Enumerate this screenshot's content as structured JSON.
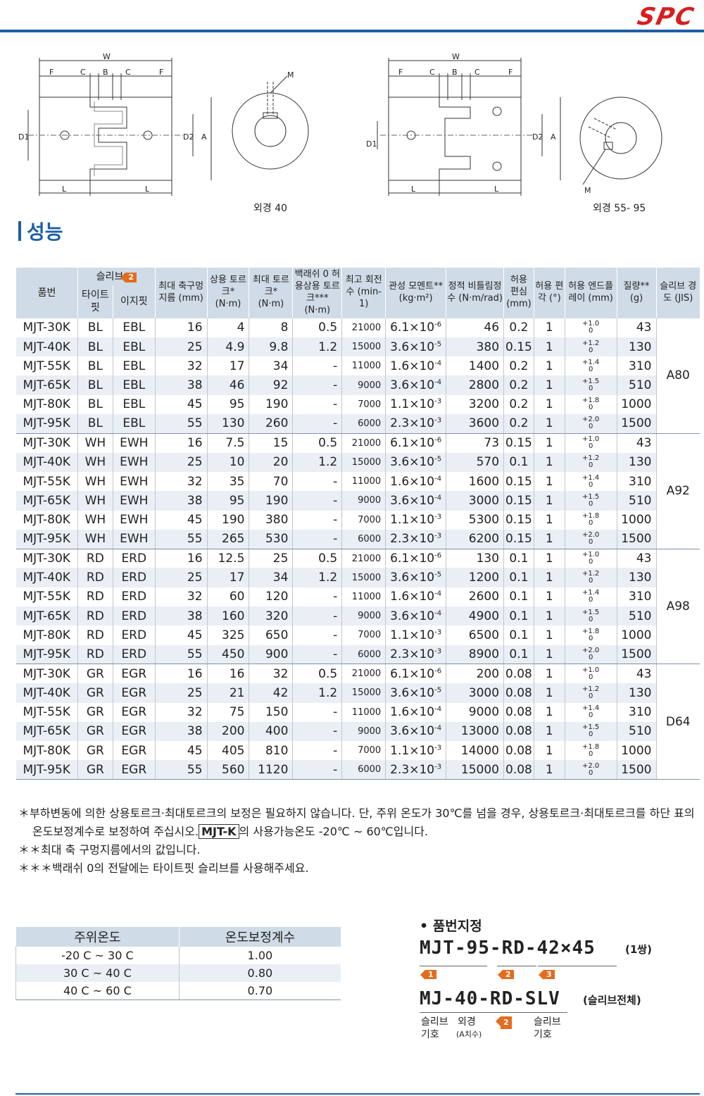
{
  "brand": "SPC",
  "drawings": {
    "left_caption": "외경 40",
    "right_caption": "외경 55- 95",
    "dims": {
      "w": "W",
      "f": "F",
      "c": "C",
      "b": "B",
      "l": "L",
      "d1": "D1",
      "d2": "D2",
      "a": "A",
      "m": "M"
    }
  },
  "section_title": "성능",
  "table": {
    "headers": {
      "part": "품번",
      "sleeve": "슬리브",
      "sleeve_badge": "2",
      "tight": "타이트핏",
      "easy": "이지핏",
      "bore": "최대 축구멍지름 (mm)",
      "rated": "상용 토르크* (N·m)",
      "max": "최대 토르크* (N·m)",
      "zero": "백래쉬 0 허용상용 토르크*** (N·m)",
      "speed": "최고 회전수 (min-1)",
      "inertia": "관성 모멘트** (kg·m²)",
      "stiff": "정적 비틀림정수 (N·m/rad)",
      "ecc": "허용 편심 (mm)",
      "ang": "허용 편각 (°)",
      "end": "허용 엔드플레이 (mm)",
      "mass": "질량** (g)",
      "hard": "슬리브 경도 (JIS)"
    },
    "groups": [
      {
        "hardness": "A80",
        "rows": [
          [
            "MJT-30K",
            "BL",
            "EBL",
            "16",
            "4",
            "8",
            "0.5",
            "21000",
            "6.1×10-6",
            "46",
            "0.2",
            "1",
            "+1.0/0",
            "43"
          ],
          [
            "MJT-40K",
            "BL",
            "EBL",
            "25",
            "4.9",
            "9.8",
            "1.2",
            "15000",
            "3.6×10-5",
            "380",
            "0.15",
            "1",
            "+1.2/0",
            "130"
          ],
          [
            "MJT-55K",
            "BL",
            "EBL",
            "32",
            "17",
            "34",
            "-",
            "11000",
            "1.6×10-4",
            "1400",
            "0.2",
            "1",
            "+1.4/0",
            "310"
          ],
          [
            "MJT-65K",
            "BL",
            "EBL",
            "38",
            "46",
            "92",
            "-",
            "9000",
            "3.6×10-4",
            "2800",
            "0.2",
            "1",
            "+1.5/0",
            "510"
          ],
          [
            "MJT-80K",
            "BL",
            "EBL",
            "45",
            "95",
            "190",
            "-",
            "7000",
            "1.1×10-3",
            "3200",
            "0.2",
            "1",
            "+1.8/0",
            "1000"
          ],
          [
            "MJT-95K",
            "BL",
            "EBL",
            "55",
            "130",
            "260",
            "-",
            "6000",
            "2.3×10-3",
            "3600",
            "0.2",
            "1",
            "+2.0/0",
            "1500"
          ]
        ]
      },
      {
        "hardness": "A92",
        "rows": [
          [
            "MJT-30K",
            "WH",
            "EWH",
            "16",
            "7.5",
            "15",
            "0.5",
            "21000",
            "6.1×10-6",
            "73",
            "0.15",
            "1",
            "+1.0/0",
            "43"
          ],
          [
            "MJT-40K",
            "WH",
            "EWH",
            "25",
            "10",
            "20",
            "1.2",
            "15000",
            "3.6×10-5",
            "570",
            "0.1",
            "1",
            "+1.2/0",
            "130"
          ],
          [
            "MJT-55K",
            "WH",
            "EWH",
            "32",
            "35",
            "70",
            "-",
            "11000",
            "1.6×10-4",
            "1600",
            "0.15",
            "1",
            "+1.4/0",
            "310"
          ],
          [
            "MJT-65K",
            "WH",
            "EWH",
            "38",
            "95",
            "190",
            "-",
            "9000",
            "3.6×10-4",
            "3000",
            "0.15",
            "1",
            "+1.5/0",
            "510"
          ],
          [
            "MJT-80K",
            "WH",
            "EWH",
            "45",
            "190",
            "380",
            "-",
            "7000",
            "1.1×10-3",
            "5300",
            "0.15",
            "1",
            "+1.8/0",
            "1000"
          ],
          [
            "MJT-95K",
            "WH",
            "EWH",
            "55",
            "265",
            "530",
            "-",
            "6000",
            "2.3×10-3",
            "6200",
            "0.15",
            "1",
            "+2.0/0",
            "1500"
          ]
        ]
      },
      {
        "hardness": "A98",
        "rows": [
          [
            "MJT-30K",
            "RD",
            "ERD",
            "16",
            "12.5",
            "25",
            "0.5",
            "21000",
            "6.1×10-6",
            "130",
            "0.1",
            "1",
            "+1.0/0",
            "43"
          ],
          [
            "MJT-40K",
            "RD",
            "ERD",
            "25",
            "17",
            "34",
            "1.2",
            "15000",
            "3.6×10-5",
            "1200",
            "0.1",
            "1",
            "+1.2/0",
            "130"
          ],
          [
            "MJT-55K",
            "RD",
            "ERD",
            "32",
            "60",
            "120",
            "-",
            "11000",
            "1.6×10-4",
            "2600",
            "0.1",
            "1",
            "+1.4/0",
            "310"
          ],
          [
            "MJT-65K",
            "RD",
            "ERD",
            "38",
            "160",
            "320",
            "-",
            "9000",
            "3.6×10-4",
            "4900",
            "0.1",
            "1",
            "+1.5/0",
            "510"
          ],
          [
            "MJT-80K",
            "RD",
            "ERD",
            "45",
            "325",
            "650",
            "-",
            "7000",
            "1.1×10-3",
            "6500",
            "0.1",
            "1",
            "+1.8/0",
            "1000"
          ],
          [
            "MJT-95K",
            "RD",
            "ERD",
            "55",
            "450",
            "900",
            "-",
            "6000",
            "2.3×10-3",
            "8900",
            "0.1",
            "1",
            "+2.0/0",
            "1500"
          ]
        ]
      },
      {
        "hardness": "D64",
        "rows": [
          [
            "MJT-30K",
            "GR",
            "EGR",
            "16",
            "16",
            "32",
            "0.5",
            "21000",
            "6.1×10-6",
            "200",
            "0.08",
            "1",
            "+1.0/0",
            "43"
          ],
          [
            "MJT-40K",
            "GR",
            "EGR",
            "25",
            "21",
            "42",
            "1.2",
            "15000",
            "3.6×10-5",
            "3000",
            "0.08",
            "1",
            "+1.2/0",
            "130"
          ],
          [
            "MJT-55K",
            "GR",
            "EGR",
            "32",
            "75",
            "150",
            "-",
            "11000",
            "1.6×10-4",
            "9000",
            "0.08",
            "1",
            "+1.4/0",
            "310"
          ],
          [
            "MJT-65K",
            "GR",
            "EGR",
            "38",
            "200",
            "400",
            "-",
            "9000",
            "3.6×10-4",
            "13000",
            "0.08",
            "1",
            "+1.5/0",
            "510"
          ],
          [
            "MJT-80K",
            "GR",
            "EGR",
            "45",
            "405",
            "810",
            "-",
            "7000",
            "1.1×10-3",
            "14000",
            "0.08",
            "1",
            "+1.8/0",
            "1000"
          ],
          [
            "MJT-95K",
            "GR",
            "EGR",
            "55",
            "560",
            "1120",
            "-",
            "6000",
            "2.3×10-3",
            "15000",
            "0.08",
            "1",
            "+2.0/0",
            "1500"
          ]
        ]
      }
    ]
  },
  "notes": {
    "n1a": "＊부하변동에 의한 상용토르크·최대토르크의 보정은 필요하지 않습니다. 단, 주위 온도가 30℃를 넘을 경우, 상용토르크·최대토르크를 하단 표의 온도보정계수로 보정하여 주십시오.",
    "n1_mjtk": "MJT-K",
    "n1b": "의 사용가능온도 -20℃ ~ 60℃입니다.",
    "n2": "＊＊최대 축 구멍지름에서의 값입니다.",
    "n3": "＊＊＊백래쉬 0의 전달에는 타이트핏 슬리브를 사용해주세요."
  },
  "temp_table": {
    "h1": "주위온도",
    "h2": "온도보정계수",
    "rows": [
      [
        "-20 C  ~  30 C",
        "1.00"
      ],
      [
        "30 C  ~  40 C",
        "0.80"
      ],
      [
        "40 C  ~  60 C",
        "0.70"
      ]
    ]
  },
  "part_number": {
    "title": "• 품번지정",
    "code1": "MJT-95-RD-42×45",
    "code1_note": "(1쌍)",
    "badges": [
      "1",
      "2",
      "3"
    ],
    "code2": "MJ-40-RD-SLV",
    "code2_note": "(슬리브전체)",
    "lbl1": "슬리브 기호",
    "lbl2": "외경",
    "lbl2b": "(A치수)",
    "badge2": "2",
    "lbl3": "슬리브 기호"
  }
}
